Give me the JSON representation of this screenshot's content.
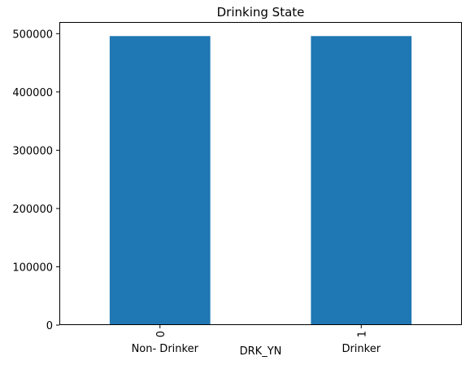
{
  "chart_data": {
    "type": "bar",
    "title": "Drinking State",
    "xlabel": "DRK_YN",
    "ylabel": "",
    "categories": [
      "0",
      "1"
    ],
    "category_annotations": [
      "Non- Drinker",
      "Drinker"
    ],
    "values": [
      495858,
      495858
    ],
    "ylim": [
      0,
      520000
    ],
    "yticks": [
      0,
      100000,
      200000,
      300000,
      400000,
      500000
    ],
    "ytick_labels": [
      "0",
      "100000",
      "200000",
      "300000",
      "400000",
      "500000"
    ],
    "grid": false,
    "legend": "none",
    "colors": {
      "bar": "#1f77b4",
      "axis": "#000000",
      "background": "#ffffff"
    }
  }
}
